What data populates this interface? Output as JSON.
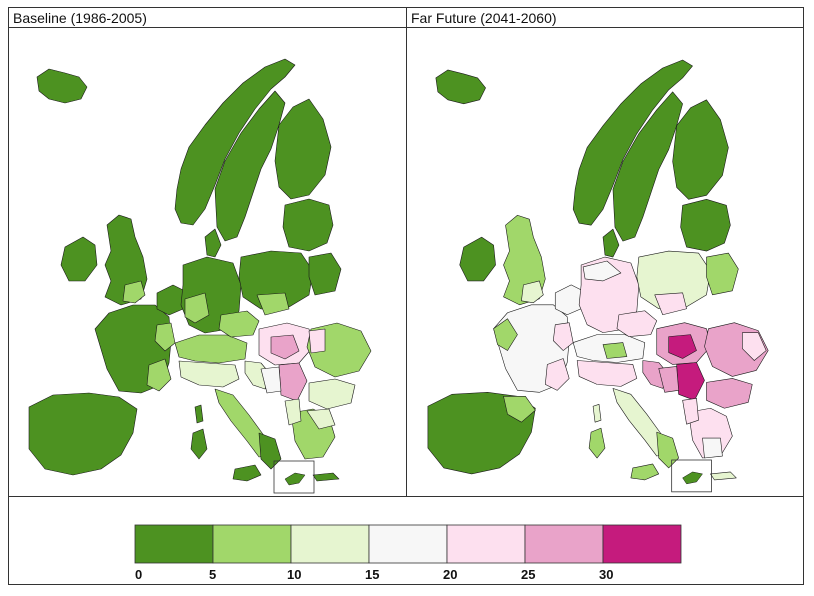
{
  "panels": [
    {
      "title": "Baseline (1986-2005)"
    },
    {
      "title": "Far Future (2041-2060)"
    }
  ],
  "legend": {
    "ticks": [
      "0",
      "5",
      "10",
      "15",
      "20",
      "25",
      "30"
    ],
    "bins": [
      {
        "range": "0–5",
        "color": "#4d9221"
      },
      {
        "range": "5–10",
        "color": "#a1d76a"
      },
      {
        "range": "10–15",
        "color": "#e6f5d0"
      },
      {
        "range": "15–20",
        "color": "#f7f7f7"
      },
      {
        "range": "20–25",
        "color": "#fde0ef"
      },
      {
        "range": "25–30",
        "color": "#e9a3c9"
      },
      {
        "range": ">30",
        "color": "#c51b7d"
      }
    ]
  }
}
